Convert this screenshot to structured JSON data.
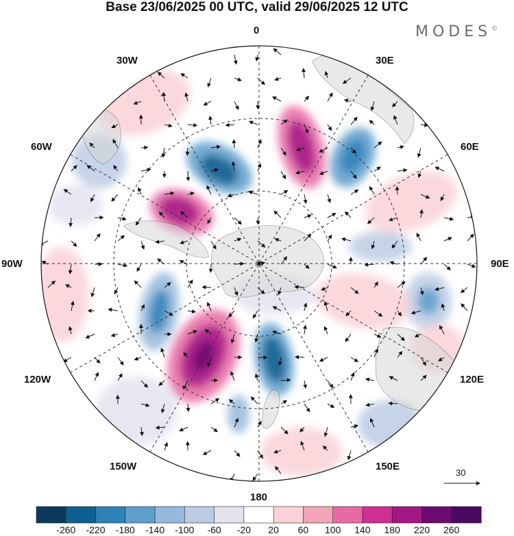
{
  "header": {
    "title": "Base 23/06/2025 00 UTC, valid 29/06/2025 12 UTC",
    "brand": "MODES",
    "brand_mark": "©"
  },
  "map": {
    "projection": "south-polar-stereographic",
    "longitude_labels": [
      "0",
      "30E",
      "60E",
      "90E",
      "120E",
      "150E",
      "180",
      "150W",
      "120W",
      "90W",
      "60W",
      "30W"
    ],
    "vector_reference": {
      "value": "30",
      "unit_arrow": "reference-arrow"
    }
  },
  "colorbar": {
    "levels": [
      "-260",
      "-220",
      "-180",
      "-140",
      "-100",
      "-60",
      "-20",
      "20",
      "60",
      "100",
      "140",
      "180",
      "220",
      "260"
    ],
    "colors": [
      "#0b3b5c",
      "#0f5f8f",
      "#2f82b8",
      "#5d9ecb",
      "#95b8db",
      "#bccbe4",
      "#e3e3f0",
      "#ffffff",
      "#f9d1d6",
      "#f3a5b8",
      "#e86aa5",
      "#cf2e93",
      "#a41886",
      "#6e0b73",
      "#4a0a62"
    ]
  }
}
